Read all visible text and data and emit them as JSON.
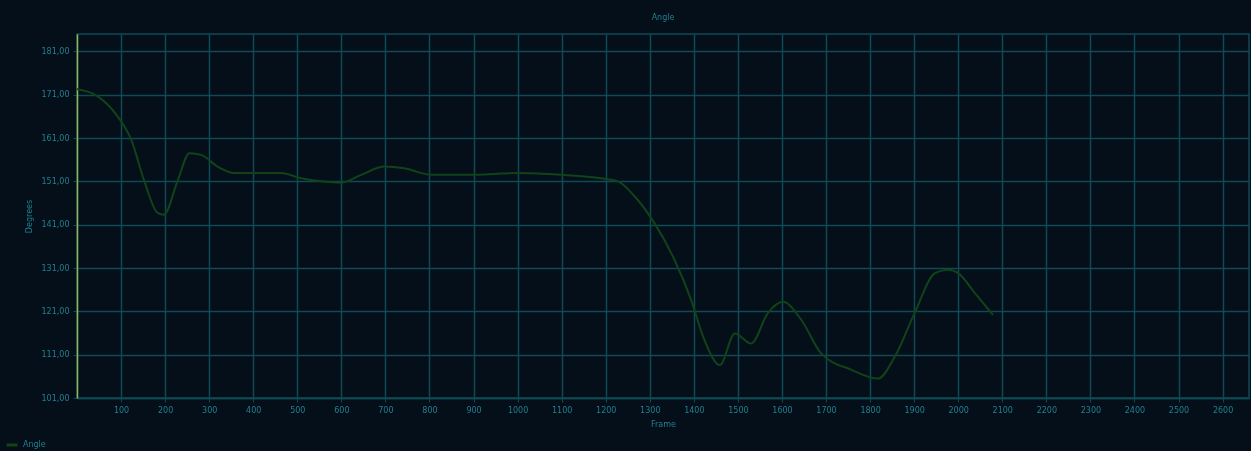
{
  "chart_data": {
    "type": "line",
    "title": "Angle",
    "xlabel": "Frame",
    "ylabel": "Degrees",
    "x": [
      0,
      47,
      92,
      123,
      152,
      183,
      197,
      229,
      255,
      282,
      319,
      357,
      403,
      463,
      509,
      554,
      599,
      645,
      698,
      743,
      804,
      887,
      1001,
      1099,
      1190,
      1228,
      1266,
      1311,
      1356,
      1394,
      1424,
      1459,
      1493,
      1530,
      1568,
      1602,
      1644,
      1689,
      1758,
      1818,
      1856,
      1901,
      1947,
      1977,
      2000,
      2038,
      2079
    ],
    "series": [
      {
        "name": "Angle",
        "color": "#104418",
        "values": [
          172.3,
          170.6,
          166,
          160.6,
          151.3,
          143.7,
          143.3,
          151.3,
          157.5,
          157.1,
          154.4,
          152.9,
          152.9,
          152.9,
          151.7,
          151,
          150.7,
          152.5,
          154.4,
          154,
          152.5,
          152.5,
          152.9,
          152.5,
          151.7,
          151,
          147.5,
          141.3,
          132.9,
          123.6,
          114.4,
          108.6,
          115.9,
          113.6,
          120.6,
          123.2,
          119,
          111.3,
          107.5,
          105.5,
          110.5,
          120.6,
          129.8,
          130.6,
          129.8,
          125.2,
          120.2
        ]
      }
    ],
    "xlim": [
      0,
      2660
    ],
    "ylim": [
      101,
      185
    ],
    "xticks": [
      100,
      200,
      300,
      400,
      500,
      600,
      700,
      800,
      900,
      1000,
      1100,
      1200,
      1300,
      1400,
      1500,
      1600,
      1700,
      1800,
      1900,
      2000,
      2100,
      2200,
      2300,
      2400,
      2500,
      2600
    ],
    "yticks": [
      {
        "value": 101,
        "label": "101,00"
      },
      {
        "value": 111,
        "label": "111,00"
      },
      {
        "value": 121,
        "label": "121,00"
      },
      {
        "value": 131,
        "label": "131,00"
      },
      {
        "value": 141,
        "label": "141,00"
      },
      {
        "value": 151,
        "label": "151,00"
      },
      {
        "value": 161,
        "label": "161,00"
      },
      {
        "value": 171,
        "label": "171,00"
      },
      {
        "value": 181,
        "label": "181,00"
      }
    ],
    "grid": true,
    "legend": "bottom",
    "line_style": "solid"
  }
}
